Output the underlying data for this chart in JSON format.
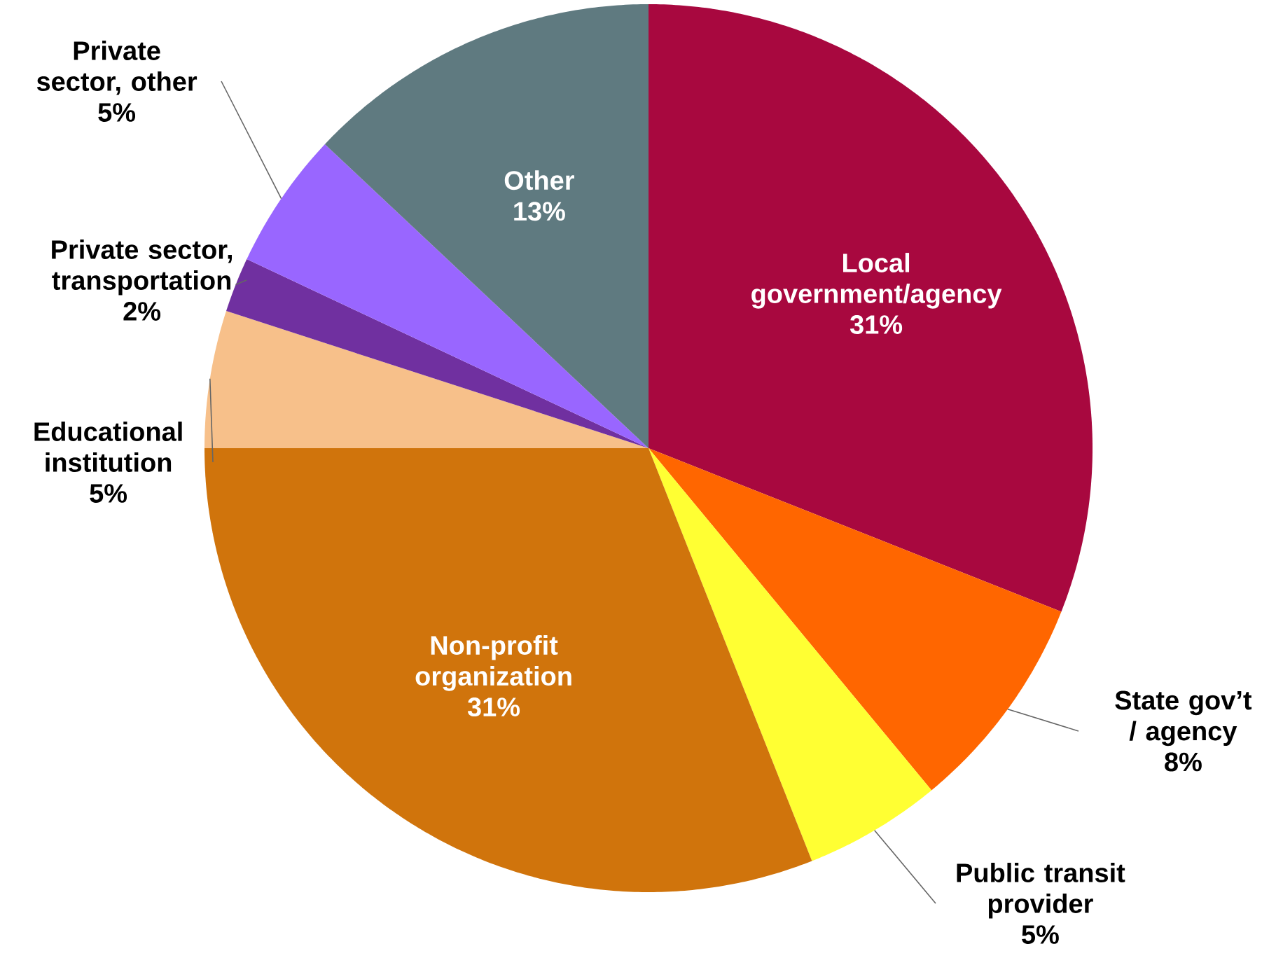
{
  "chart_data": {
    "type": "pie",
    "categories": [
      "Local government/agency",
      "State gov’t / agency",
      "Public transit provider",
      "Non-profit organization",
      "Educational institution",
      "Private sector, transportation",
      "Private sector, other",
      "Other"
    ],
    "values": [
      31,
      8,
      5,
      31,
      5,
      2,
      5,
      13
    ],
    "value_labels": [
      "31%",
      "8%",
      "5%",
      "31%",
      "5%",
      "2%",
      "5%",
      "13%"
    ],
    "colors": [
      "#a8083f",
      "#ff6600",
      "#ffff33",
      "#d0740c",
      "#f7c08a",
      "#7030a0",
      "#9966ff",
      "#5f7a80"
    ]
  }
}
